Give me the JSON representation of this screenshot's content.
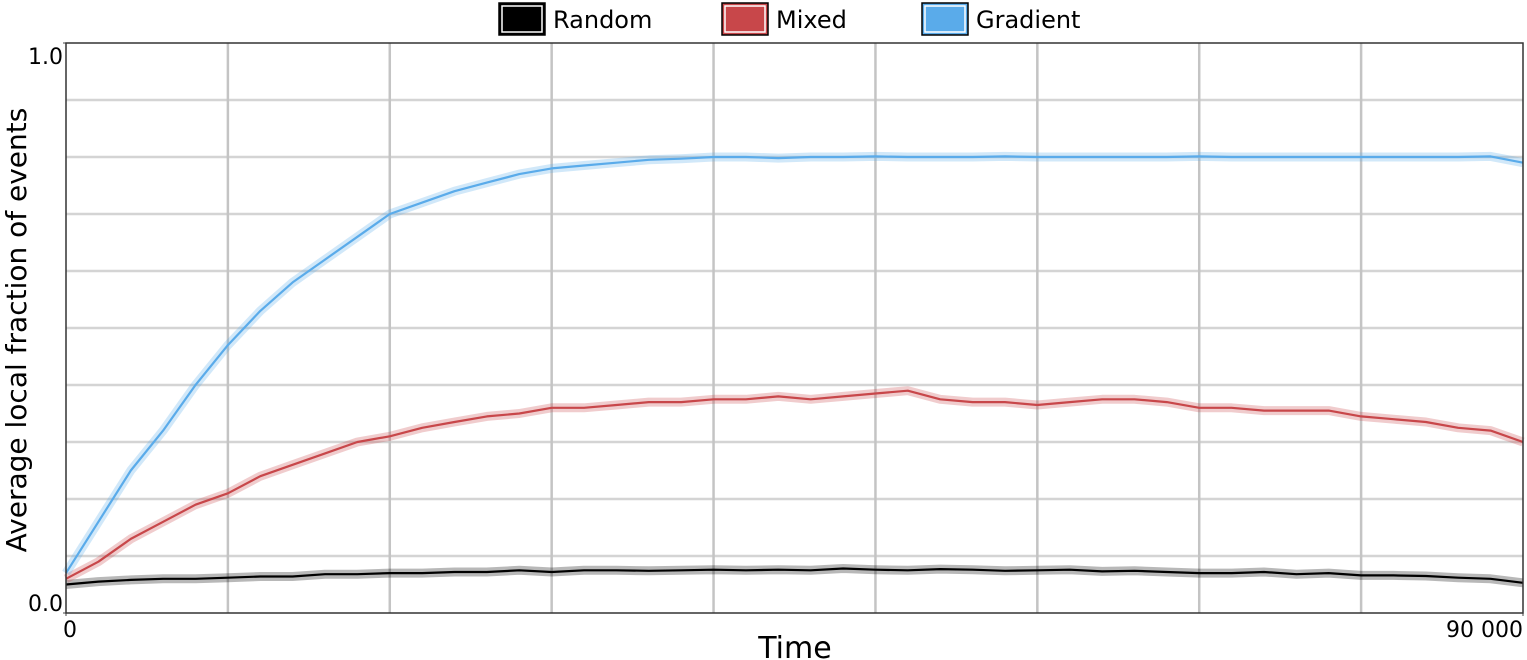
{
  "chart_data": {
    "type": "line",
    "xlabel": "Time",
    "ylabel": "Average local fraction of events",
    "x": [
      0,
      2000,
      4000,
      6000,
      8000,
      10000,
      12000,
      14000,
      16000,
      18000,
      20000,
      22000,
      24000,
      26000,
      28000,
      30000,
      32000,
      34000,
      36000,
      38000,
      40000,
      42000,
      44000,
      46000,
      48000,
      50000,
      52000,
      54000,
      56000,
      58000,
      60000,
      62000,
      64000,
      66000,
      68000,
      70000,
      72000,
      74000,
      76000,
      78000,
      80000,
      82000,
      84000,
      86000,
      88000,
      90000
    ],
    "series": [
      {
        "name": "Random",
        "color": "#000000",
        "values": [
          0.05,
          0.055,
          0.058,
          0.06,
          0.06,
          0.062,
          0.064,
          0.064,
          0.068,
          0.068,
          0.07,
          0.07,
          0.072,
          0.072,
          0.075,
          0.072,
          0.075,
          0.075,
          0.074,
          0.075,
          0.076,
          0.075,
          0.076,
          0.075,
          0.078,
          0.076,
          0.075,
          0.077,
          0.076,
          0.074,
          0.075,
          0.076,
          0.073,
          0.074,
          0.072,
          0.07,
          0.07,
          0.072,
          0.068,
          0.07,
          0.066,
          0.066,
          0.065,
          0.062,
          0.06,
          0.053
        ]
      },
      {
        "name": "Mixed",
        "color": "#c8474a",
        "values": [
          0.06,
          0.09,
          0.13,
          0.16,
          0.19,
          0.21,
          0.24,
          0.26,
          0.28,
          0.3,
          0.31,
          0.325,
          0.335,
          0.345,
          0.35,
          0.36,
          0.36,
          0.365,
          0.37,
          0.37,
          0.375,
          0.375,
          0.38,
          0.375,
          0.38,
          0.385,
          0.39,
          0.375,
          0.37,
          0.37,
          0.365,
          0.37,
          0.375,
          0.375,
          0.37,
          0.36,
          0.36,
          0.355,
          0.355,
          0.355,
          0.345,
          0.34,
          0.335,
          0.325,
          0.32,
          0.3
        ]
      },
      {
        "name": "Gradient",
        "color": "#5aabea",
        "values": [
          0.07,
          0.16,
          0.25,
          0.32,
          0.4,
          0.47,
          0.53,
          0.58,
          0.62,
          0.66,
          0.7,
          0.72,
          0.74,
          0.755,
          0.77,
          0.78,
          0.785,
          0.79,
          0.795,
          0.797,
          0.8,
          0.8,
          0.798,
          0.8,
          0.8,
          0.801,
          0.8,
          0.8,
          0.8,
          0.801,
          0.8,
          0.8,
          0.8,
          0.8,
          0.8,
          0.801,
          0.8,
          0.8,
          0.8,
          0.8,
          0.8,
          0.8,
          0.8,
          0.8,
          0.801,
          0.79
        ]
      }
    ],
    "xlim": [
      0,
      90000
    ],
    "xticks": [
      0,
      {
        "value": 90000,
        "label": "90 000"
      }
    ],
    "xgrid": [
      10000,
      20000,
      30000,
      40000,
      50000,
      60000,
      70000,
      80000
    ],
    "ylim": [
      0,
      1
    ],
    "yticks": [
      {
        "value": 0,
        "label": "0.0"
      },
      {
        "value": 1,
        "label": "1.0"
      }
    ],
    "ygrid": [
      0.1,
      0.2,
      0.3,
      0.4,
      0.5,
      0.6,
      0.7,
      0.8,
      0.9
    ],
    "legend": "top"
  }
}
